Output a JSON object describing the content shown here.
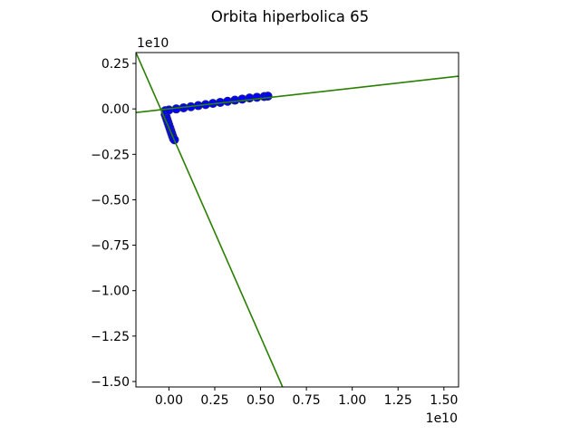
{
  "chart_data": {
    "type": "scatter",
    "title": "Orbita hiperbolica 65",
    "xlabel": "",
    "ylabel": "",
    "x_offset_label": "1e10",
    "y_offset_label": "1e10",
    "xlim": [
      -0.18,
      1.58
    ],
    "ylim": [
      -1.53,
      0.31
    ],
    "x_ticks": [
      0.0,
      0.25,
      0.5,
      0.75,
      1.0,
      1.25,
      1.5
    ],
    "x_tick_labels": [
      "0.00",
      "0.25",
      "0.50",
      "0.75",
      "1.00",
      "1.25",
      "1.50"
    ],
    "y_ticks": [
      0.25,
      0.0,
      -0.25,
      -0.5,
      -0.75,
      -1.0,
      -1.25,
      -1.5
    ],
    "y_tick_labels": [
      "0.25",
      "0.00",
      "−0.25",
      "−0.50",
      "−0.75",
      "−1.00",
      "−1.25",
      "−1.50"
    ],
    "grid": false,
    "colors": {
      "points": "#0000ff",
      "points_edge": "#1f1f8f",
      "asymptote": "#2a7f00",
      "axes": "#000000"
    },
    "series": [
      {
        "kind": "points",
        "branches": [
          {
            "x": [
              -0.02,
              -0.015,
              -0.01,
              -0.005,
              0.0,
              0.005,
              0.01,
              0.015,
              0.02,
              0.025,
              0.03
            ],
            "y": [
              -0.03,
              -0.045,
              -0.06,
              -0.075,
              -0.09,
              -0.105,
              -0.12,
              -0.135,
              -0.15,
              -0.163,
              -0.17
            ]
          },
          {
            "x": [
              -0.02,
              0.0,
              0.04,
              0.08,
              0.12,
              0.16,
              0.2,
              0.24,
              0.28,
              0.32,
              0.36,
              0.4,
              0.44,
              0.48,
              0.52,
              0.54
            ],
            "y": [
              -0.01,
              -0.006,
              0.0,
              0.006,
              0.012,
              0.018,
              0.024,
              0.03,
              0.036,
              0.042,
              0.048,
              0.054,
              0.06,
              0.064,
              0.068,
              0.07
            ]
          }
        ]
      },
      {
        "kind": "asymptote",
        "lines": [
          {
            "x": [
              -0.18,
              1.58
            ],
            "y": [
              -0.02,
              0.18
            ]
          },
          {
            "x": [
              -0.18,
              0.62
            ],
            "y": [
              0.31,
              -1.53
            ]
          }
        ]
      }
    ]
  }
}
